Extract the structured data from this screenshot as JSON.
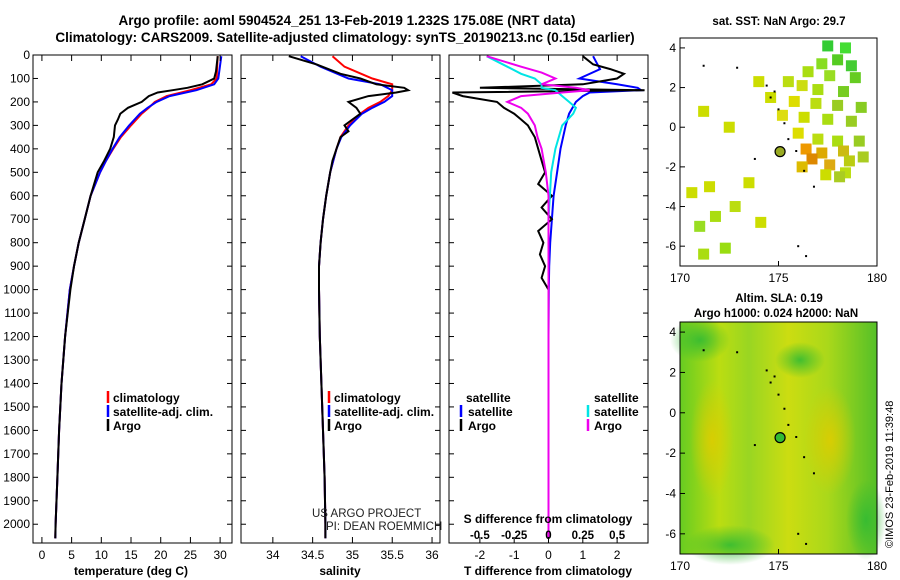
{
  "header": {
    "line1": "Argo profile: aoml 5904524_251 13-Feb-2019 1.232S 175.08E (NRT data)",
    "line2": "Climatology: CARS2009. Satellite-adjusted climatology: synTS_20190213.nc (0.15d earlier)"
  },
  "credits": {
    "project": "US ARGO PROJECT",
    "pi": "PI: DEAN ROEMMICH"
  },
  "footer": {
    "imos": "©IMOS 23-Feb-2019 11:39:48"
  },
  "colors": {
    "climatology": "#ff0000",
    "satellite": "#0000ff",
    "argo": "#000000",
    "satellite_salinity": "#00e5e5",
    "argo_salinity": "#ee00ee"
  },
  "chart_data": [
    {
      "type": "line",
      "name": "temperature",
      "xlabel": "temperature (deg C)",
      "xlim": [
        -1.5,
        32
      ],
      "xticks": [
        0,
        5,
        10,
        15,
        20,
        25,
        30
      ],
      "ylim": [
        0,
        2080
      ],
      "yticks": [
        0,
        100,
        200,
        300,
        400,
        500,
        600,
        700,
        800,
        900,
        1000,
        1100,
        1200,
        1300,
        1400,
        1500,
        1600,
        1700,
        1800,
        1900,
        2000
      ],
      "legend": [
        "climatology",
        "satellite-adj. clim.",
        "Argo"
      ],
      "series": [
        {
          "name": "climatology",
          "depth": [
            5,
            100,
            125,
            150,
            175,
            200,
            225,
            250,
            300,
            350,
            400,
            450,
            500,
            600,
            700,
            800,
            900,
            1000,
            1200,
            1400,
            1600,
            1800,
            2000,
            2060
          ],
          "values": [
            29.6,
            29.4,
            28.5,
            25.0,
            21.0,
            19.0,
            18.0,
            16.8,
            15.0,
            13.3,
            12.0,
            10.8,
            9.8,
            8.2,
            7.2,
            6.2,
            5.4,
            4.7,
            3.9,
            3.3,
            2.9,
            2.6,
            2.3,
            2.25
          ]
        },
        {
          "name": "satellite-adj. clim.",
          "depth": [
            5,
            100,
            125,
            150,
            175,
            200,
            225,
            250,
            300,
            350,
            400,
            450,
            500,
            600,
            700,
            800,
            900,
            1000,
            1200,
            1400,
            1600,
            1800,
            2000,
            2060
          ],
          "values": [
            30.2,
            29.7,
            29.0,
            26.0,
            21.5,
            19.3,
            17.8,
            16.5,
            14.7,
            13.1,
            11.9,
            10.8,
            9.8,
            8.2,
            7.2,
            6.2,
            5.4,
            4.7,
            3.9,
            3.3,
            2.9,
            2.6,
            2.3,
            2.25
          ]
        },
        {
          "name": "Argo",
          "depth": [
            5,
            70,
            100,
            125,
            140,
            150,
            160,
            175,
            200,
            225,
            250,
            275,
            300,
            350,
            400,
            450,
            500,
            600,
            700,
            800,
            900,
            1000,
            1200,
            1400,
            1600,
            1800,
            2000,
            2060
          ],
          "values": [
            29.6,
            29.3,
            29.0,
            27.0,
            24.5,
            22.0,
            19.5,
            18.0,
            16.8,
            14.5,
            13.2,
            12.8,
            12.3,
            12.1,
            11.5,
            10.5,
            9.4,
            8.2,
            7.2,
            6.2,
            5.4,
            4.8,
            3.9,
            3.3,
            2.9,
            2.6,
            2.3,
            2.25
          ]
        }
      ]
    },
    {
      "type": "line",
      "name": "salinity",
      "xlabel": "salinity",
      "xlim": [
        33.6,
        36.1
      ],
      "xticks": [
        34,
        34.5,
        35,
        35.5,
        36
      ],
      "ylim": [
        0,
        2080
      ],
      "legend": [
        "climatology",
        "satellite-adj. clim.",
        "Argo"
      ],
      "series": [
        {
          "name": "climatology",
          "depth": [
            5,
            50,
            100,
            125,
            150,
            175,
            200,
            225,
            250,
            300,
            350,
            400,
            500,
            600,
            700,
            800,
            900,
            1000,
            1200,
            1400,
            1600,
            1800,
            2000,
            2060
          ],
          "values": [
            34.75,
            34.9,
            35.25,
            35.5,
            35.5,
            35.45,
            35.35,
            35.2,
            35.1,
            34.95,
            34.85,
            34.8,
            34.72,
            34.67,
            34.63,
            34.6,
            34.58,
            34.58,
            34.59,
            34.61,
            34.63,
            34.65,
            34.66,
            34.66
          ]
        },
        {
          "name": "satellite-adj. clim.",
          "depth": [
            5,
            50,
            100,
            125,
            150,
            175,
            200,
            225,
            250,
            300,
            350,
            400,
            500,
            600,
            700,
            800,
            900,
            1000,
            1200,
            1400,
            1600,
            1800,
            2000,
            2060
          ],
          "values": [
            34.35,
            34.6,
            34.95,
            35.35,
            35.5,
            35.5,
            35.4,
            35.25,
            35.12,
            34.97,
            34.86,
            34.8,
            34.72,
            34.67,
            34.63,
            34.6,
            34.58,
            34.58,
            34.59,
            34.61,
            34.63,
            34.65,
            34.66,
            34.66
          ]
        },
        {
          "name": "Argo",
          "depth": [
            5,
            40,
            80,
            100,
            125,
            140,
            150,
            160,
            175,
            200,
            225,
            250,
            275,
            300,
            325,
            350,
            400,
            450,
            500,
            600,
            700,
            800,
            900,
            1000,
            1200,
            1400,
            1600,
            1800,
            2000,
            2060
          ],
          "values": [
            34.2,
            34.55,
            34.85,
            35.1,
            35.3,
            35.65,
            35.7,
            35.55,
            35.2,
            34.95,
            35.05,
            35.1,
            35.0,
            34.9,
            34.95,
            34.85,
            34.8,
            34.75,
            34.72,
            34.67,
            34.63,
            34.6,
            34.58,
            34.58,
            34.59,
            34.61,
            34.63,
            34.65,
            34.66,
            34.66
          ]
        }
      ]
    },
    {
      "type": "line",
      "name": "difference from climatology",
      "xlabel": "T difference from climatology",
      "xlabel_top": "S difference from climatology",
      "xlim": [
        -2.9,
        2.9
      ],
      "xticks": [
        -2,
        -1,
        0,
        1,
        2
      ],
      "xticks_top": [
        -0.5,
        -0.25,
        0,
        0.25,
        0.5
      ],
      "xticklabels_top": [
        "-0.5",
        "-0.25",
        "0",
        "0.25",
        "0.5"
      ],
      "ylim": [
        0,
        2080
      ],
      "legend": {
        "temperature": [
          "satellite",
          "Argo"
        ],
        "salinity": [
          "satellite",
          "Argo"
        ]
      },
      "series": [
        {
          "name": "temperature satellite",
          "depth": [
            5,
            60,
            100,
            125,
            140,
            150,
            160,
            175,
            200,
            250,
            300,
            400,
            500,
            600,
            700,
            800,
            900,
            1000,
            1200,
            1400,
            1600,
            1800,
            2000,
            2060
          ],
          "values": [
            1.3,
            1.5,
            0.9,
            2.0,
            2.6,
            2.7,
            1.2,
            1.0,
            0.8,
            0.6,
            0.5,
            0.35,
            0.25,
            0.15,
            0.1,
            0.05,
            0.02,
            0.01,
            0,
            0,
            0,
            0,
            0,
            0
          ]
        },
        {
          "name": "temperature Argo",
          "depth": [
            5,
            40,
            60,
            80,
            100,
            125,
            140,
            150,
            160,
            175,
            200,
            225,
            250,
            275,
            300,
            325,
            350,
            400,
            450,
            500,
            550,
            600,
            650,
            700,
            750,
            800,
            850,
            900,
            950,
            1000,
            1100,
            1200,
            1400,
            1600,
            1800,
            2000,
            2060
          ],
          "values": [
            1.0,
            1.3,
            1.8,
            2.2,
            2.0,
            1.0,
            -2.0,
            2.8,
            -2.8,
            -2.5,
            -1.5,
            -1.3,
            -1.0,
            -0.8,
            -0.6,
            -0.5,
            -0.4,
            -0.3,
            -0.2,
            -0.1,
            -0.3,
            0.1,
            -0.2,
            0.1,
            -0.3,
            -0.15,
            -0.25,
            -0.1,
            -0.2,
            0,
            0,
            0,
            0,
            0,
            0,
            0,
            0
          ]
        },
        {
          "name": "salinity satellite",
          "depth": [
            5,
            50,
            80,
            100,
            125,
            140,
            150,
            175,
            200,
            225,
            250,
            300,
            400,
            500,
            600,
            700,
            800,
            1000,
            1200,
            1400,
            1600,
            1800,
            2000,
            2060
          ],
          "values": [
            -0.45,
            -0.3,
            -0.2,
            -0.1,
            -0.05,
            -0.05,
            0.05,
            0.1,
            0.15,
            0.2,
            0.18,
            0.1,
            0.05,
            0.02,
            0.01,
            0,
            0,
            0,
            0,
            0,
            0,
            0,
            0,
            0
          ]
        },
        {
          "name": "salinity Argo",
          "depth": [
            5,
            50,
            75,
            100,
            125,
            140,
            150,
            160,
            175,
            200,
            225,
            250,
            300,
            350,
            400,
            500,
            600,
            700,
            800,
            1000,
            1200,
            1400,
            1600,
            1800,
            2000,
            2060
          ],
          "values": [
            -0.45,
            -0.2,
            -0.05,
            0.05,
            -0.05,
            0.2,
            0.3,
            0.1,
            -0.2,
            -0.3,
            -0.2,
            -0.15,
            -0.1,
            -0.08,
            -0.05,
            -0.02,
            0,
            0,
            0,
            0,
            0,
            0,
            0,
            0,
            0,
            0
          ]
        }
      ]
    },
    {
      "type": "heatmap",
      "name": "satellite SST",
      "title": "sat.  SST: NaN  Argo: 29.7",
      "xlim": [
        170,
        180
      ],
      "ylim": [
        -7,
        4.5
      ],
      "xticks": [
        170,
        175,
        180
      ],
      "yticks": [
        -6,
        -4,
        -2,
        0,
        2,
        4
      ],
      "marker": {
        "lon": 175.08,
        "lat": -1.232
      },
      "cells": [
        [
          177.5,
          4.1,
          "#33cc33"
        ],
        [
          178.4,
          4.0,
          "#44dd33"
        ],
        [
          178.0,
          3.4,
          "#55cc22"
        ],
        [
          177.2,
          3.2,
          "#88dd22"
        ],
        [
          178.7,
          3.1,
          "#44cc33"
        ],
        [
          176.5,
          2.8,
          "#aadd11"
        ],
        [
          177.6,
          2.6,
          "#99dd22"
        ],
        [
          178.9,
          2.5,
          "#66cc22"
        ],
        [
          175.5,
          2.3,
          "#bbdd11"
        ],
        [
          176.2,
          2.1,
          "#ccdd11"
        ],
        [
          174.0,
          2.3,
          "#ccdd00"
        ],
        [
          177.0,
          1.9,
          "#aadd11"
        ],
        [
          178.3,
          1.8,
          "#77cc22"
        ],
        [
          174.6,
          1.5,
          "#ccdd00"
        ],
        [
          175.8,
          1.3,
          "#dddd00"
        ],
        [
          176.9,
          1.2,
          "#bbdd11"
        ],
        [
          178.0,
          1.1,
          "#99cc22"
        ],
        [
          179.2,
          1.0,
          "#88cc22"
        ],
        [
          171.2,
          0.8,
          "#ccdd00"
        ],
        [
          175.2,
          0.6,
          "#dddd11"
        ],
        [
          176.3,
          0.5,
          "#ccdd00"
        ],
        [
          177.5,
          0.4,
          "#aadd11"
        ],
        [
          178.7,
          0.3,
          "#99cc22"
        ],
        [
          172.5,
          0.0,
          "#ccdd00"
        ],
        [
          176.0,
          -0.3,
          "#dddd00"
        ],
        [
          177.0,
          -0.6,
          "#bbdd11"
        ],
        [
          178.0,
          -0.7,
          "#aadd11"
        ],
        [
          179.1,
          -0.7,
          "#99cc22"
        ],
        [
          176.4,
          -1.1,
          "#ee9900"
        ],
        [
          177.2,
          -1.3,
          "#ddaa00"
        ],
        [
          178.3,
          -1.2,
          "#ccbb11"
        ],
        [
          176.7,
          -1.6,
          "#dd8800"
        ],
        [
          177.6,
          -1.9,
          "#ddaa11"
        ],
        [
          178.6,
          -1.7,
          "#bbcc11"
        ],
        [
          179.3,
          -1.5,
          "#aacc22"
        ],
        [
          176.2,
          -2.0,
          "#ddbb00"
        ],
        [
          177.4,
          -2.4,
          "#ccdd00"
        ],
        [
          178.4,
          -2.3,
          "#bbdd11"
        ],
        [
          173.5,
          -2.8,
          "#ccdd00"
        ],
        [
          170.6,
          -3.3,
          "#ccdd00"
        ],
        [
          172.8,
          -4.0,
          "#bbdd11"
        ],
        [
          171.8,
          -4.5,
          "#aadd11"
        ],
        [
          174.1,
          -4.8,
          "#ccdd00"
        ],
        [
          171.0,
          -5.0,
          "#99dd22"
        ],
        [
          172.3,
          -6.1,
          "#99dd11"
        ],
        [
          171.2,
          -6.4,
          "#aadd11"
        ],
        [
          178.1,
          -2.5,
          "#aacc22"
        ],
        [
          171.5,
          -3.0,
          "#ccdd00"
        ]
      ]
    },
    {
      "type": "heatmap",
      "name": "sea level anomaly",
      "title": "Altim. SLA: 0.19",
      "subtitle": "Argo h1000: 0.024 h2000: NaN",
      "xlim": [
        170,
        180
      ],
      "ylim": [
        -7,
        4.5
      ],
      "xticks": [
        170,
        175,
        180
      ],
      "yticks": [
        -6,
        -4,
        -2,
        0,
        2,
        4
      ],
      "marker": {
        "lon": 175.08,
        "lat": -1.232
      }
    }
  ]
}
